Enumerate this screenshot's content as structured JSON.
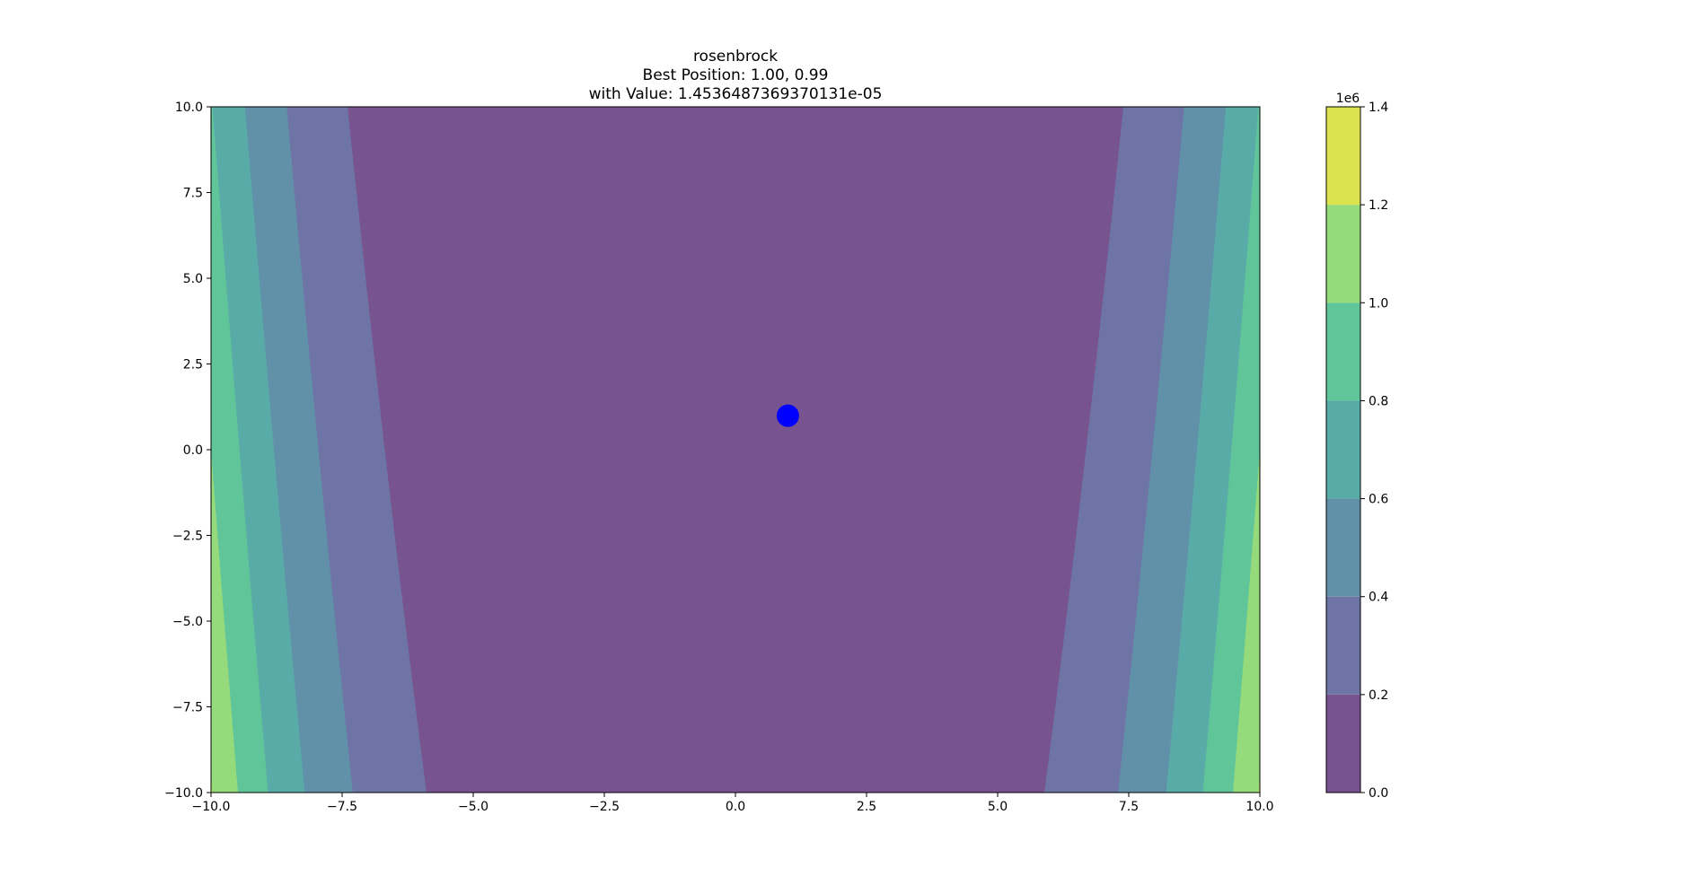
{
  "chart_data": {
    "type": "heatmap",
    "subtype": "filled-contour",
    "function": "rosenbrock",
    "title_lines": [
      "rosenbrock",
      "Best Position: 1.00, 0.99",
      "with Value: 1.4536487369370131e-05"
    ],
    "xlim": [
      -10,
      10
    ],
    "ylim": [
      -10,
      10
    ],
    "x_ticks": [
      -10,
      -7.5,
      -5,
      -2.5,
      0,
      2.5,
      5,
      7.5,
      10
    ],
    "x_tick_labels": [
      "−10.0",
      "−7.5",
      "−5.0",
      "−2.5",
      "0.0",
      "2.5",
      "5.0",
      "7.5",
      "10.0"
    ],
    "y_ticks": [
      10,
      7.5,
      5,
      2.5,
      0,
      -2.5,
      -5,
      -7.5,
      -10
    ],
    "y_tick_labels": [
      "10.0",
      "7.5",
      "5.0",
      "2.5",
      "0.0",
      "−2.5",
      "−5.0",
      "−7.5",
      "−10.0"
    ],
    "levels": [
      0,
      0.2,
      0.4,
      0.6,
      0.8,
      1.0,
      1.2,
      1.4
    ],
    "level_scale": 1000000,
    "colors": [
      "#77548f",
      "#6e75a6",
      "#6191a8",
      "#59aba8",
      "#60c599",
      "#95da7b",
      "#dbe34e"
    ],
    "colorbar": {
      "ticks": [
        1.4,
        1.2,
        1.0,
        0.8,
        0.6,
        0.4,
        0.2,
        0.0
      ],
      "tick_labels": [
        "1.4",
        "1.2",
        "1.0",
        "0.8",
        "0.6",
        "0.4",
        "0.2",
        "0.0"
      ],
      "offset_label": "1e6"
    },
    "best_point": {
      "x": 1.0,
      "y": 0.99,
      "color": "#0000ff"
    },
    "grid": false
  }
}
